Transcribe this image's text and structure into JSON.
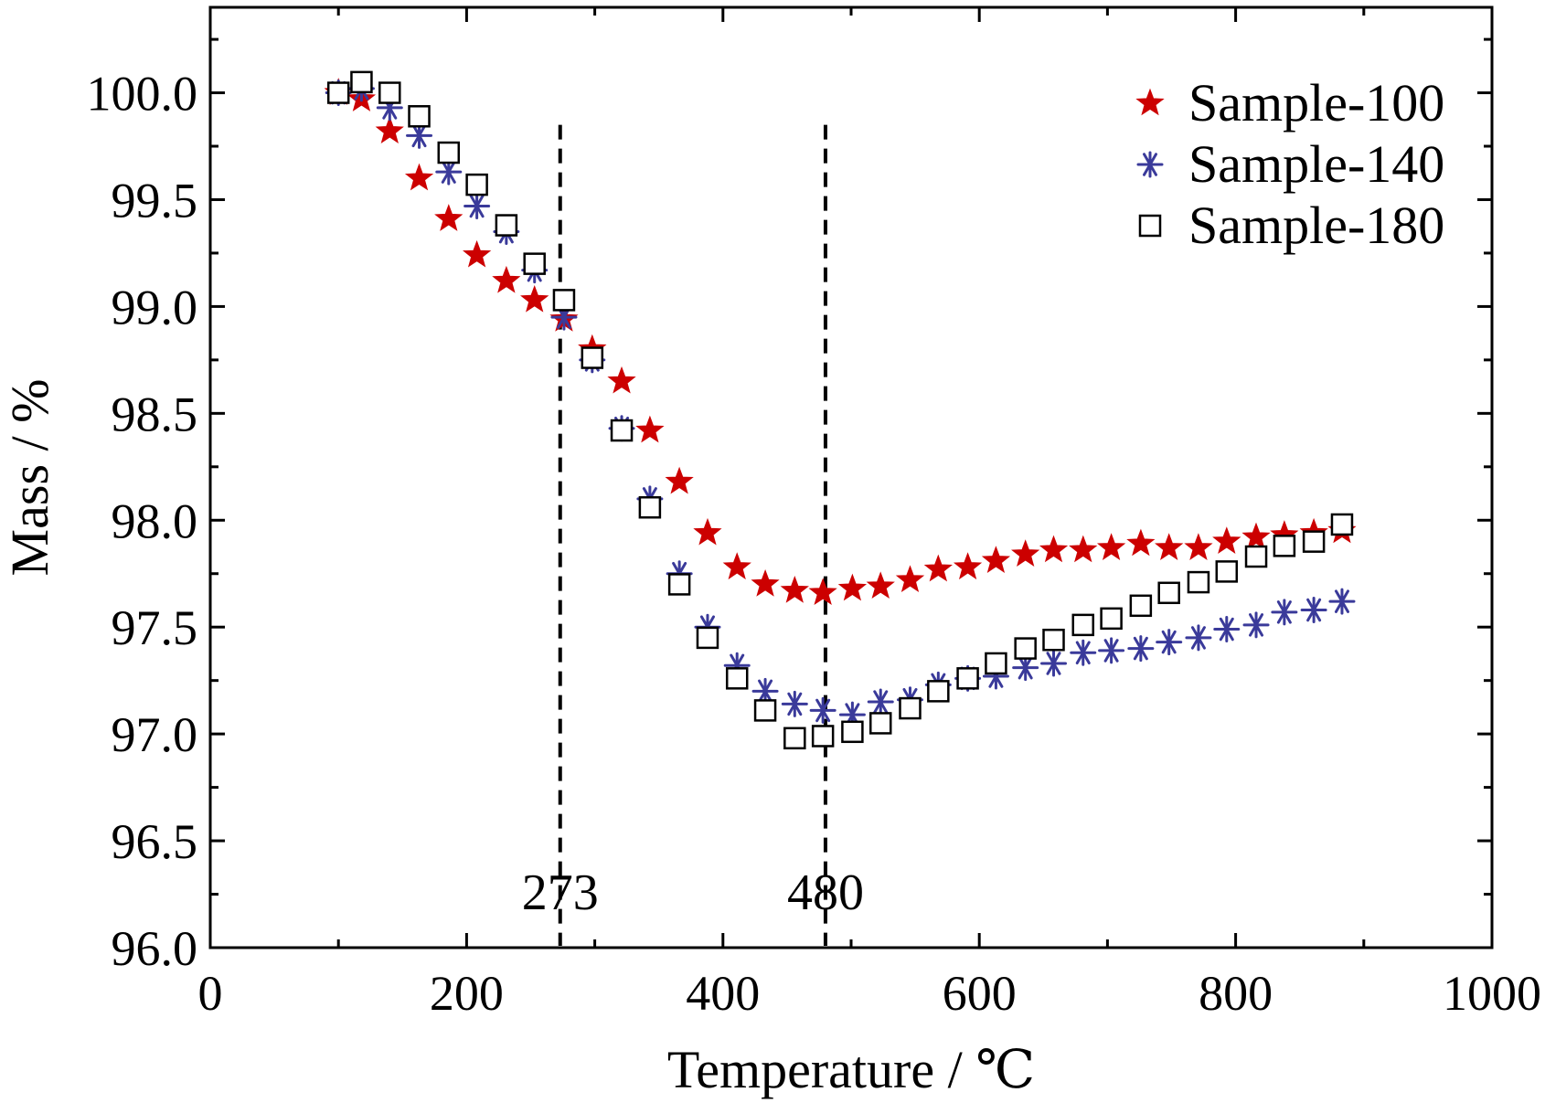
{
  "chart_data": {
    "type": "scatter",
    "xlabel": "Temperature / ℃",
    "ylabel": "Mass / %",
    "xlim": [
      0,
      1000
    ],
    "ylim": [
      96.0,
      100.4
    ],
    "xticks": [
      0,
      200,
      400,
      600,
      800,
      1000
    ],
    "yticks": [
      96.0,
      96.5,
      97.0,
      97.5,
      98.0,
      98.5,
      99.0,
      99.5,
      100.0
    ],
    "xtick_labels": [
      "0",
      "200",
      "400",
      "600",
      "800",
      "1000"
    ],
    "ytick_labels": [
      "96.0",
      "96.5",
      "97.0",
      "97.5",
      "98.0",
      "98.5",
      "99.0",
      "99.5",
      "100.0"
    ],
    "grid": false,
    "legend_position": "top-right",
    "vlines": [
      {
        "x": 273,
        "label": "273"
      },
      {
        "x": 480,
        "label": "480"
      }
    ],
    "series": [
      {
        "name": "Sample-100",
        "marker": "star",
        "color": "#cc0000",
        "x": [
          100,
          118,
          140,
          163,
          186,
          208,
          231,
          253,
          276,
          298,
          321,
          343,
          366,
          388,
          411,
          433,
          456,
          478,
          501,
          523,
          546,
          568,
          591,
          613,
          636,
          658,
          681,
          703,
          726,
          748,
          771,
          793,
          816,
          838,
          861,
          883
        ],
        "y": [
          100.0,
          99.97,
          99.82,
          99.6,
          99.41,
          99.24,
          99.12,
          99.03,
          98.94,
          98.8,
          98.65,
          98.42,
          98.18,
          97.94,
          97.78,
          97.7,
          97.67,
          97.66,
          97.68,
          97.69,
          97.72,
          97.77,
          97.78,
          97.81,
          97.84,
          97.86,
          97.86,
          97.87,
          97.89,
          97.87,
          97.87,
          97.9,
          97.92,
          97.93,
          97.94,
          97.95
        ]
      },
      {
        "name": "Sample-140",
        "marker": "asterisk",
        "color": "#3a3a9a",
        "x": [
          100,
          118,
          140,
          163,
          186,
          208,
          231,
          253,
          276,
          298,
          321,
          343,
          366,
          388,
          411,
          433,
          456,
          478,
          501,
          523,
          546,
          568,
          591,
          613,
          636,
          658,
          681,
          703,
          726,
          748,
          771,
          793,
          816,
          838,
          861,
          883
        ],
        "y": [
          100.0,
          100.02,
          99.93,
          99.8,
          99.63,
          99.47,
          99.35,
          99.17,
          98.95,
          98.75,
          98.43,
          98.1,
          97.75,
          97.5,
          97.32,
          97.2,
          97.14,
          97.11,
          97.09,
          97.15,
          97.16,
          97.23,
          97.26,
          97.27,
          97.31,
          97.33,
          97.38,
          97.39,
          97.4,
          97.43,
          97.45,
          97.49,
          97.51,
          97.57,
          97.58,
          97.62
        ]
      },
      {
        "name": "Sample-180",
        "marker": "square",
        "color": "#000000",
        "x": [
          100,
          118,
          140,
          163,
          186,
          208,
          231,
          253,
          276,
          298,
          321,
          343,
          366,
          388,
          411,
          433,
          456,
          478,
          501,
          523,
          546,
          568,
          591,
          613,
          636,
          658,
          681,
          703,
          726,
          748,
          771,
          793,
          816,
          838,
          861,
          883
        ],
        "y": [
          100.0,
          100.05,
          100.0,
          99.89,
          99.72,
          99.57,
          99.38,
          99.2,
          99.03,
          98.76,
          98.42,
          98.06,
          97.7,
          97.45,
          97.26,
          97.11,
          96.98,
          96.99,
          97.01,
          97.05,
          97.12,
          97.2,
          97.26,
          97.33,
          97.4,
          97.44,
          97.51,
          97.54,
          97.6,
          97.66,
          97.71,
          97.76,
          97.83,
          97.88,
          97.9,
          97.98
        ]
      }
    ]
  }
}
